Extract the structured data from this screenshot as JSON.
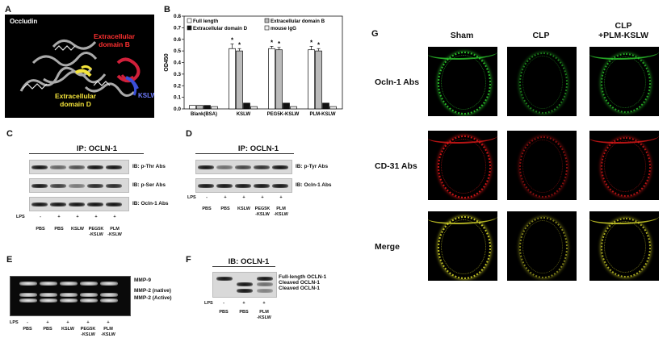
{
  "panels": {
    "A": {
      "letter": "A",
      "title": "Occludin",
      "domain_b": [
        "Extracellular",
        "domain B"
      ],
      "domain_d": [
        "Extracellular",
        "domain D"
      ],
      "kslw": "KSLW"
    },
    "B": {
      "letter": "B"
    },
    "C": {
      "letter": "C",
      "ip": "IP: OCLN-1",
      "ib_labels": [
        "IB: p-Thr Abs",
        "IB: p-Ser Abs",
        "IB: Ocln-1 Abs"
      ],
      "lps_label": "LPS",
      "lps": [
        "-",
        "+",
        "+",
        "+",
        "+"
      ],
      "lanes": [
        "PBS",
        "PBS",
        "KSLW",
        "PEG5K\n-KSLW",
        "PLM\n-KSLW"
      ]
    },
    "D": {
      "letter": "D",
      "ip": "IP: OCLN-1",
      "ib_labels": [
        "IB: p-Tyr Abs",
        "IB: Ocln-1 Abs"
      ],
      "lps_label": "LPS",
      "lps": [
        "-",
        "+",
        "+",
        "+",
        "+"
      ],
      "lanes": [
        "PBS",
        "PBS",
        "KSLW",
        "PEG5K\n-KSLW",
        "PLM\n-KSLW"
      ]
    },
    "E": {
      "letter": "E",
      "band_labels": [
        "MMP-9",
        "MMP-2 (native)",
        "MMP-2 (Active)"
      ],
      "lps_label": "LPS",
      "lps": [
        "-",
        "+",
        "+",
        "+",
        "+"
      ],
      "lanes": [
        "PBS",
        "PBS",
        "KSLW",
        "PEG5K\n-KSLW",
        "PLM\n-KSLW"
      ]
    },
    "F": {
      "letter": "F",
      "ib": "IB: OCLN-1",
      "band_labels": [
        "Full-length OCLN-1",
        "Cleaved OCLN-1",
        "Cleaved OCLN-1"
      ],
      "lps_label": "LPS",
      "lps": [
        "-",
        "+",
        "+"
      ],
      "lanes": [
        "PBS",
        "PBS",
        "PLM\n-KSLW"
      ]
    },
    "G": {
      "letter": "G",
      "columns": [
        "Sham",
        "CLP",
        "CLP\n+PLM-KSLW"
      ],
      "rows": [
        "Ocln-1 Abs",
        "CD-31 Abs",
        "Merge"
      ],
      "row_colors": [
        "#2ecc2e",
        "#e01818",
        "#d6d62a"
      ]
    }
  },
  "chart_data": {
    "type": "bar",
    "ylabel": "OD450",
    "ylim": [
      0,
      0.8
    ],
    "yticks": [
      "0.0",
      "0.1",
      "0.2",
      "0.3",
      "0.4",
      "0.5",
      "0.6",
      "0.7",
      "0.8"
    ],
    "categories": [
      "Blank(BSA)",
      "KSLW",
      "PEG5K-KSLW",
      "PLM-KSLW"
    ],
    "series": [
      {
        "name": "Full length",
        "color": "#ffffff",
        "values": [
          0.03,
          0.52,
          0.52,
          0.51
        ],
        "errors": [
          0,
          0.04,
          0.02,
          0.03
        ],
        "stars": [
          false,
          true,
          true,
          true
        ]
      },
      {
        "name": "Extracellular domain B",
        "color": "#bbbbbb",
        "values": [
          0.03,
          0.5,
          0.51,
          0.5
        ],
        "errors": [
          0,
          0.02,
          0.02,
          0.02
        ],
        "stars": [
          false,
          true,
          true,
          true
        ]
      },
      {
        "name": "Extracellular domain D",
        "color": "#111111",
        "values": [
          0.03,
          0.05,
          0.05,
          0.05
        ],
        "errors": [
          0,
          0,
          0,
          0
        ],
        "stars": [
          false,
          false,
          false,
          false
        ]
      },
      {
        "name": "mouse IgG",
        "color": "#f2f2f2",
        "values": [
          0.02,
          0.02,
          0.02,
          0.02
        ],
        "errors": [
          0,
          0,
          0,
          0
        ],
        "stars": [
          false,
          false,
          false,
          false
        ]
      }
    ],
    "legend": [
      "Full length",
      "Extracellular domain B",
      "Extracellular domain D",
      "mouse IgG"
    ],
    "star_symbol": "*"
  }
}
